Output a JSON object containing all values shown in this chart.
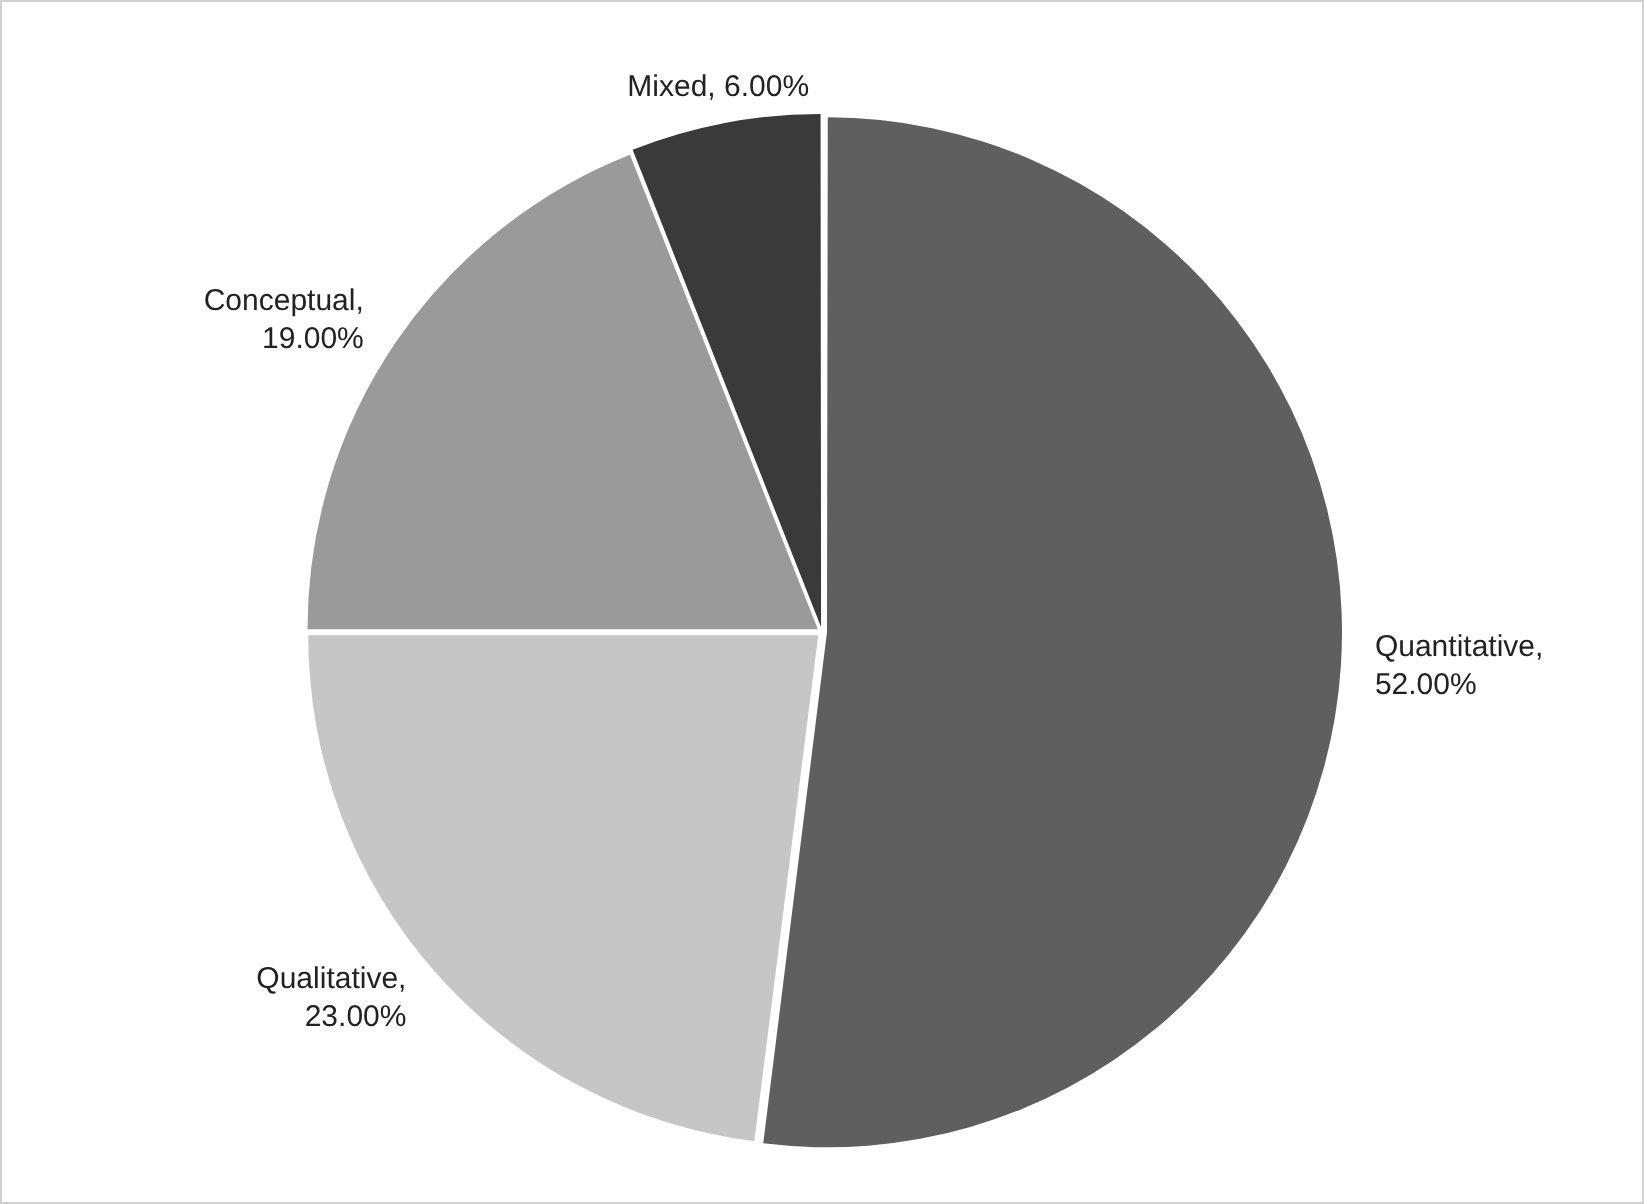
{
  "chart_data": {
    "type": "pie",
    "categories": [
      "Quantitative",
      "Qualitative",
      "Conceptual",
      "Mixed"
    ],
    "values": [
      52,
      23,
      19,
      6
    ],
    "colors": [
      "#5f5f5f",
      "#c6c6c6",
      "#9a9a9a",
      "#3a3a3a"
    ],
    "value_labels": [
      ", 52.00%",
      ", 23.00%",
      ", 19.00%",
      ", 6.00%"
    ],
    "legend": false
  }
}
